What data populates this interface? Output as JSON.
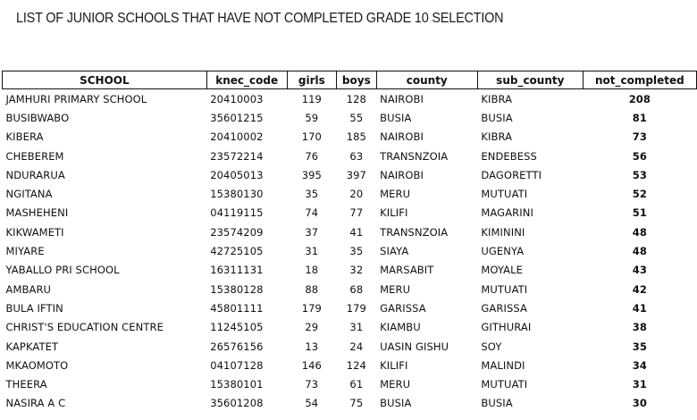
{
  "title": "LIST OF JUNIOR SCHOOLS THAT HAVE NOT COMPLETED GRADE 10 SELECTION",
  "table": {
    "headers": [
      "SCHOOL",
      "knec_code",
      "girls",
      "boys",
      "county",
      "sub_county",
      "not_completed"
    ],
    "rows": [
      [
        "JAMHURI PRIMARY SCHOOL",
        "20410003",
        "119",
        "128",
        "NAIROBI",
        "KIBRA",
        "208"
      ],
      [
        "BUSIBWABO",
        "35601215",
        "59",
        "55",
        "BUSIA",
        "BUSIA",
        "81"
      ],
      [
        "KIBERA",
        "20410002",
        "170",
        "185",
        "NAIROBI",
        "KIBRA",
        "73"
      ],
      [
        "CHEBEREM",
        "23572214",
        "76",
        "63",
        "TRANSNZOIA",
        "ENDEBESS",
        "56"
      ],
      [
        "NDURARUA",
        "20405013",
        "395",
        "397",
        "NAIROBI",
        "DAGORETTI",
        "53"
      ],
      [
        "NGITANA",
        "15380130",
        "35",
        "20",
        "MERU",
        "MUTUATI",
        "52"
      ],
      [
        "MASHEHENI",
        "04119115",
        "74",
        "77",
        "KILIFI",
        "MAGARINI",
        "51"
      ],
      [
        "KIKWAMETI",
        "23574209",
        "37",
        "41",
        "TRANSNZOIA",
        "KIMININI",
        "48"
      ],
      [
        "MIYARE",
        "42725105",
        "31",
        "35",
        "SIAYA",
        "UGENYA",
        "48"
      ],
      [
        "YABALLO PRI SCHOOL",
        "16311131",
        "18",
        "32",
        "MARSABIT",
        "MOYALE",
        "43"
      ],
      [
        "AMBARU",
        "15380128",
        "88",
        "68",
        "MERU",
        "MUTUATI",
        "42"
      ],
      [
        "BULA IFTIN",
        "45801111",
        "179",
        "179",
        "GARISSA",
        "GARISSA",
        "41"
      ],
      [
        "CHRIST'S EDUCATION CENTRE",
        "11245105",
        "29",
        "31",
        "KIAMBU",
        "GITHURAI",
        "38"
      ],
      [
        "KAPKATET",
        "26576156",
        "13",
        "24",
        "UASIN GISHU",
        "SOY",
        "35"
      ],
      [
        "MKAOMOTO",
        "04107128",
        "146",
        "124",
        "KILIFI",
        "MALINDI",
        "34"
      ],
      [
        "THEERA",
        "15380101",
        "73",
        "61",
        "MERU",
        "MUTUATI",
        "31"
      ],
      [
        "NASIRA A C",
        "35601208",
        "54",
        "75",
        "BUSIA",
        "BUSIA",
        "30"
      ]
    ]
  }
}
